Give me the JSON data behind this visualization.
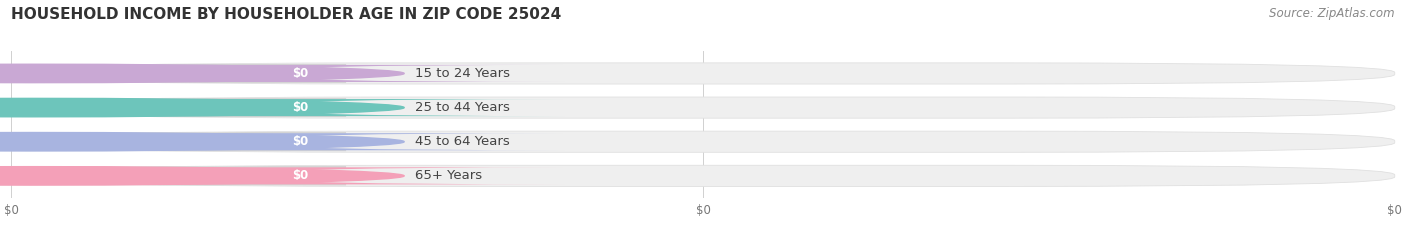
{
  "title": "HOUSEHOLD INCOME BY HOUSEHOLDER AGE IN ZIP CODE 25024",
  "source": "Source: ZipAtlas.com",
  "categories": [
    "15 to 24 Years",
    "25 to 44 Years",
    "45 to 64 Years",
    "65+ Years"
  ],
  "values": [
    0,
    0,
    0,
    0
  ],
  "bar_colors": [
    "#c9a8d4",
    "#6dc5bb",
    "#a8b4e0",
    "#f4a0b8"
  ],
  "background_color": "#ffffff",
  "fig_width": 14.06,
  "fig_height": 2.33,
  "title_fontsize": 11,
  "source_fontsize": 8.5,
  "bar_fontsize": 8.5,
  "category_fontsize": 9.5,
  "tick_fontsize": 8.5
}
